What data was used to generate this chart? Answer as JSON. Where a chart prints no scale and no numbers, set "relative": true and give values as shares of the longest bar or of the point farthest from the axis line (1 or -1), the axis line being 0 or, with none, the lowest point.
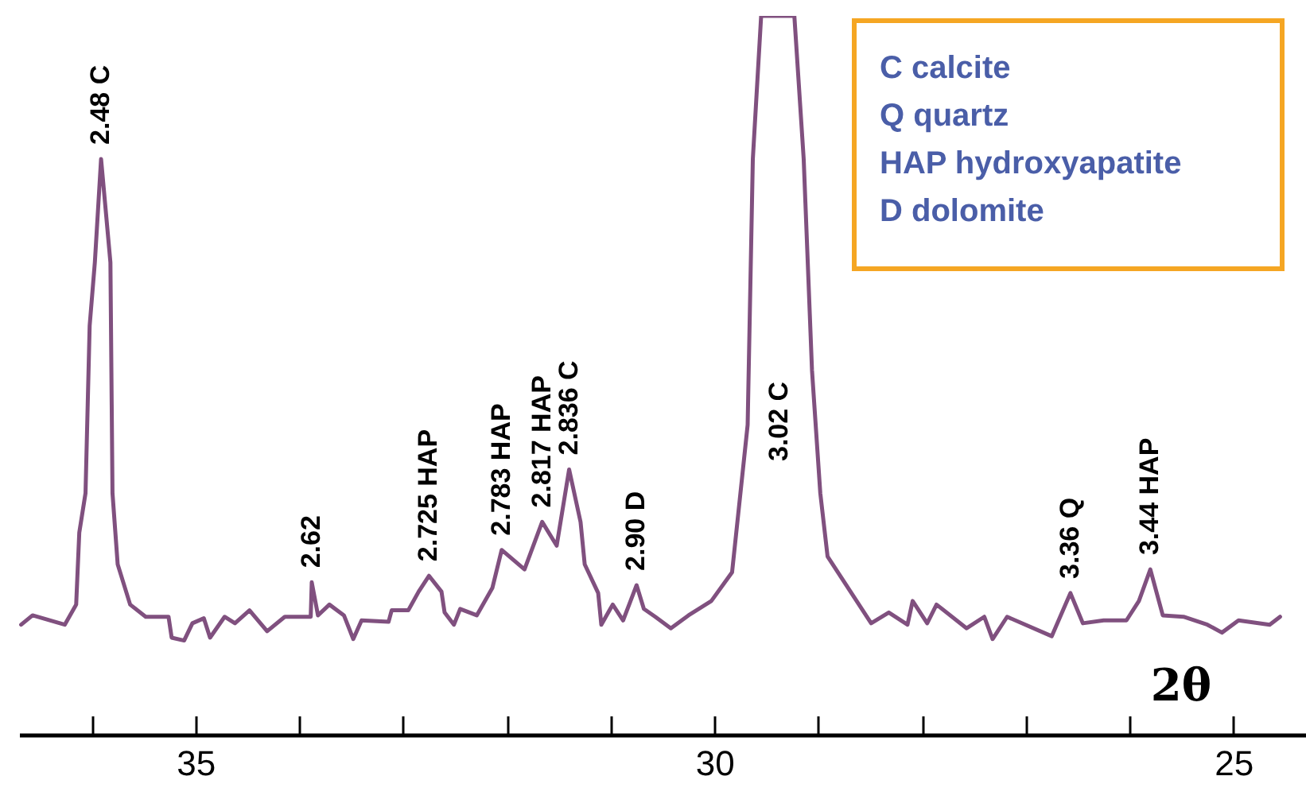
{
  "chart_data": {
    "type": "line",
    "relative": true,
    "xlabel": "2θ",
    "xlim": [
      36.7,
      24.3
    ],
    "xticks": [
      {
        "value": 36,
        "label": null
      },
      35,
      {
        "value": 34,
        "label": null
      },
      {
        "value": 33,
        "label": null
      },
      {
        "value": 32,
        "label": null
      },
      {
        "value": 31,
        "label": null
      },
      30,
      {
        "value": 29,
        "label": null
      },
      {
        "value": 28,
        "label": null
      },
      {
        "value": 27,
        "label": null
      },
      {
        "value": 26,
        "label": null
      },
      25
    ],
    "series": [
      {
        "color": "#80507f",
        "x": [
          36.68,
          36.57,
          36.26,
          36.15,
          36.12,
          36.06,
          36.02,
          35.97,
          35.91,
          35.82,
          35.8,
          35.75,
          35.63,
          35.48,
          35.26,
          35.23,
          35.11,
          35.03,
          34.92,
          34.86,
          34.72,
          34.62,
          34.48,
          34.31,
          34.14,
          33.89,
          33.88,
          33.82,
          33.71,
          33.57,
          33.48,
          33.4,
          33.14,
          33.11,
          32.95,
          32.85,
          32.75,
          32.63,
          32.6,
          32.51,
          32.45,
          32.29,
          32.14,
          32.05,
          31.83,
          31.66,
          31.52,
          31.4,
          31.29,
          31.25,
          31.12,
          31.09,
          30.98,
          30.88,
          30.75,
          30.68,
          30.57,
          30.42,
          30.25,
          30.03,
          29.83,
          29.68,
          29.63,
          29.55,
          29.23,
          29.14,
          29.06,
          28.98,
          28.91,
          28.49,
          28.32,
          28.14,
          28.09,
          27.95,
          27.86,
          27.57,
          27.4,
          27.32,
          27.18,
          26.75,
          26.57,
          26.45,
          26.25,
          26.03,
          25.91,
          25.8,
          25.68,
          25.48,
          25.25,
          25.11,
          24.95,
          24.65,
          24.55
        ],
        "values": [
          0.153,
          0.166,
          0.153,
          0.181,
          0.281,
          0.336,
          0.569,
          0.657,
          0.801,
          0.657,
          0.336,
          0.237,
          0.181,
          0.164,
          0.164,
          0.135,
          0.131,
          0.155,
          0.162,
          0.135,
          0.164,
          0.155,
          0.173,
          0.144,
          0.164,
          0.164,
          0.212,
          0.166,
          0.181,
          0.166,
          0.133,
          0.159,
          0.157,
          0.173,
          0.173,
          0.199,
          0.221,
          0.199,
          0.17,
          0.153,
          0.175,
          0.166,
          0.204,
          0.257,
          0.23,
          0.296,
          0.263,
          0.369,
          0.296,
          0.237,
          0.197,
          0.153,
          0.181,
          0.159,
          0.208,
          0.175,
          0.164,
          0.148,
          0.166,
          0.186,
          0.226,
          0.431,
          0.801,
          1,
          1,
          0.801,
          0.507,
          0.336,
          0.248,
          0.155,
          0.17,
          0.153,
          0.186,
          0.155,
          0.181,
          0.148,
          0.164,
          0.133,
          0.164,
          0.137,
          0.197,
          0.155,
          0.159,
          0.159,
          0.186,
          0.23,
          0.166,
          0.164,
          0.153,
          0.142,
          0.159,
          0.153,
          0.164
        ]
      }
    ],
    "annotations": [
      {
        "text": "2.48 C",
        "x": 35.91,
        "y": 0.801
      },
      {
        "text": "2.62",
        "x": 33.88,
        "y": 0.212
      },
      {
        "text": "2.725 HAP",
        "x": 32.75,
        "y": 0.221
      },
      {
        "text": "2.783 HAP",
        "x": 32.05,
        "y": 0.257
      },
      {
        "text": "2.817 HAP",
        "x": 31.66,
        "y": 0.296
      },
      {
        "text": "2.836 C",
        "x": 31.4,
        "y": 0.369
      },
      {
        "text": "2.90 D",
        "x": 30.75,
        "y": 0.208
      },
      "3.02 C",
      {
        "text": "3.36 Q",
        "x": 26.57,
        "y": 0.197
      },
      {
        "text": "3.44 HAP",
        "x": 25.8,
        "y": 0.23
      },
      "C calcite",
      "Q quartz",
      "HAP hydroxyapatite",
      "D dolomite"
    ]
  }
}
